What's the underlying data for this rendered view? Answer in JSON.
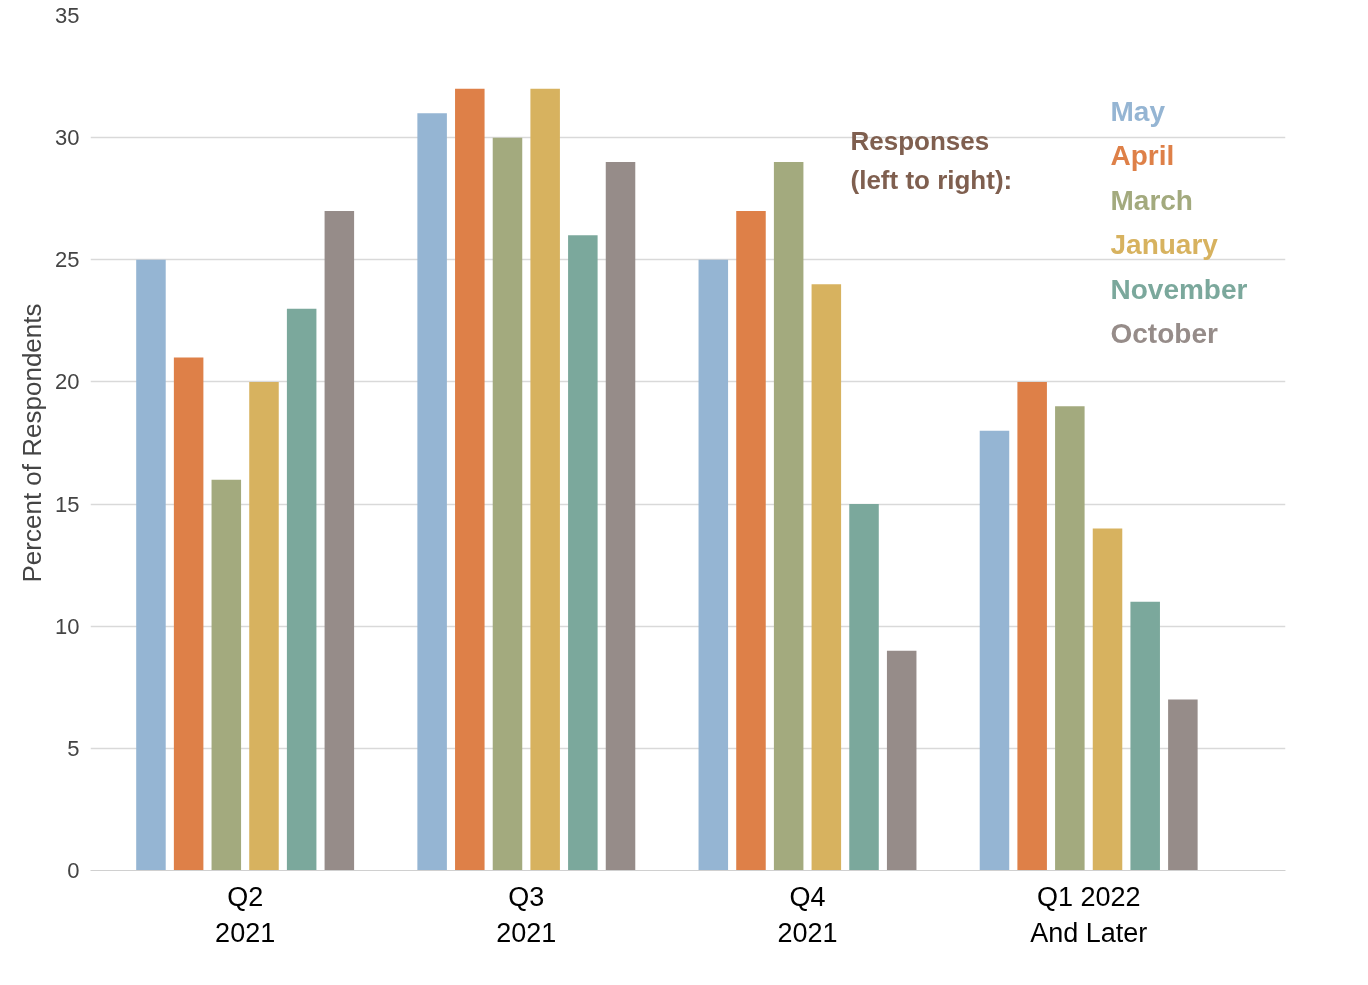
{
  "chart_data": {
    "type": "bar",
    "ylabel": "Percent of Respondents",
    "legend_title": "Responses\n(left to right):",
    "categories": [
      "Q2\n2021",
      "Q3\n2021",
      "Q4\n2021",
      "Q1 2022\nAnd Later"
    ],
    "series": [
      {
        "name": "May",
        "color": "#95b5d3",
        "values": [
          25,
          31,
          25,
          18
        ]
      },
      {
        "name": "April",
        "color": "#de8048",
        "values": [
          21,
          32,
          27,
          20
        ]
      },
      {
        "name": "March",
        "color": "#a3aa7e",
        "values": [
          16,
          30,
          29,
          19
        ]
      },
      {
        "name": "January",
        "color": "#d7b25f",
        "values": [
          20,
          32,
          24,
          14
        ]
      },
      {
        "name": "November",
        "color": "#7ba89c",
        "values": [
          23,
          26,
          15,
          11
        ]
      },
      {
        "name": "October",
        "color": "#968c89",
        "values": [
          27,
          29,
          9,
          7
        ]
      }
    ],
    "ylim": [
      0,
      35
    ],
    "yticks": [
      0,
      5,
      10,
      15,
      20,
      25,
      30,
      35
    ],
    "grid": "y",
    "legend": "top right"
  }
}
